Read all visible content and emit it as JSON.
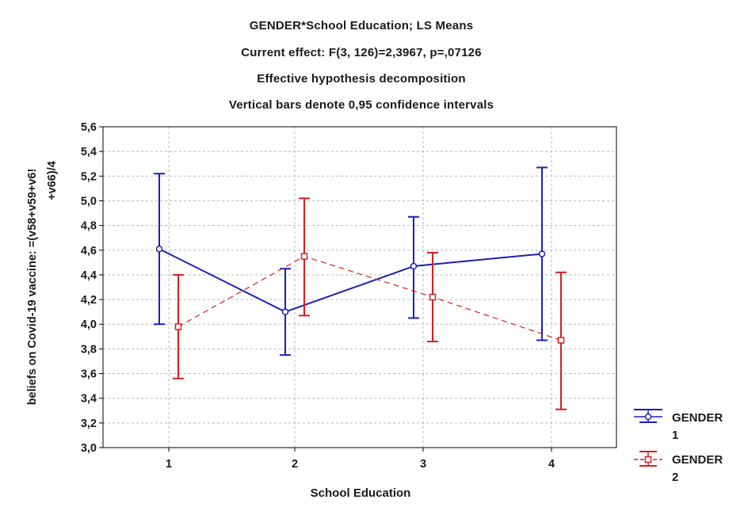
{
  "chart_data": {
    "type": "line",
    "title_lines": [
      "GENDER*School Education; LS Means",
      "Current effect: F(3, 126)=2,3967, p=,07126",
      "Effective hypothesis decomposition",
      "Vertical bars denote 0,95 confidence intervals"
    ],
    "xlabel": "School Education",
    "ylabel_lines": [
      "beliefs on Covid-19 vaccine: =(v58+v59+v6!",
      "+v66)/4"
    ],
    "categories": [
      "1",
      "2",
      "3",
      "4"
    ],
    "ylim": [
      3.0,
      5.6
    ],
    "yticks": [
      "3,0",
      "3,2",
      "3,4",
      "3,6",
      "3,8",
      "4,0",
      "4,2",
      "4,4",
      "4,6",
      "4,8",
      "5,0",
      "5,2",
      "5,4",
      "5,6"
    ],
    "grid": true,
    "legend_position": "right",
    "series": [
      {
        "name_line1": "GENDER",
        "name_line2": "1",
        "color": "#1f1fb5",
        "dashed": false,
        "marker": "circle",
        "values": [
          4.61,
          4.1,
          4.47,
          4.57
        ],
        "lower": [
          4.0,
          3.75,
          4.05,
          3.87
        ],
        "upper": [
          5.22,
          4.45,
          4.87,
          5.27
        ]
      },
      {
        "name_line1": "GENDER",
        "name_line2": "2",
        "color": "#d42020",
        "dashed": true,
        "marker": "square",
        "values": [
          3.98,
          4.55,
          4.22,
          3.87
        ],
        "lower": [
          3.56,
          4.07,
          3.86,
          3.31
        ],
        "upper": [
          4.4,
          5.02,
          4.58,
          4.42
        ]
      }
    ]
  }
}
